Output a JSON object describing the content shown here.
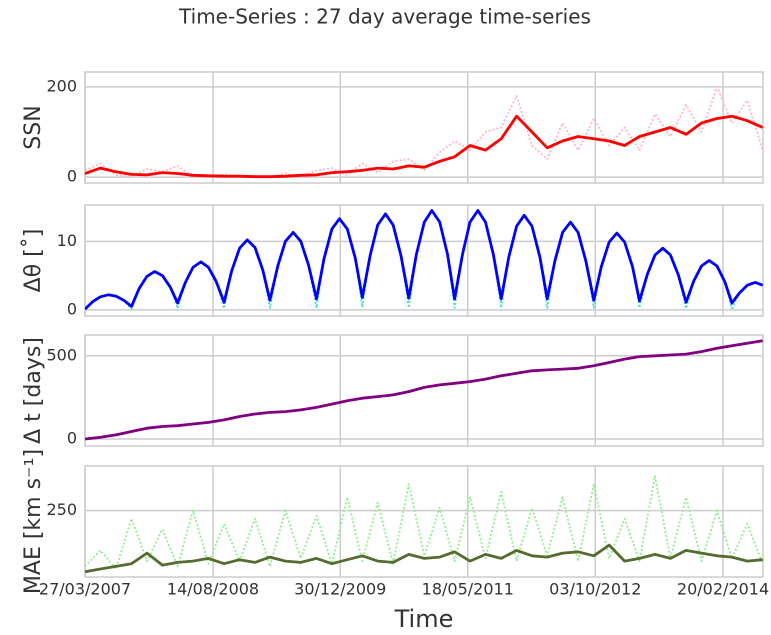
{
  "title": "Time-Series : 27 day average time-series",
  "chart_data": [
    {
      "type": "line",
      "ylabel": "SSN",
      "xlim": [
        "27/03/2007",
        "28/07/2014"
      ],
      "ylim": [
        -13,
        233
      ],
      "yticks": [
        0,
        200
      ],
      "grid": true,
      "x": [
        "27/03/2007",
        "27/05/2007",
        "27/07/2007",
        "27/09/2007",
        "27/11/2007",
        "27/01/2008",
        "27/03/2008",
        "27/05/2008",
        "27/07/2008",
        "27/09/2008",
        "27/11/2008",
        "27/01/2009",
        "27/03/2009",
        "27/05/2009",
        "27/07/2009",
        "27/09/2009",
        "27/11/2009",
        "27/01/2010",
        "27/03/2010",
        "27/05/2010",
        "27/07/2010",
        "27/09/2010",
        "27/11/2010",
        "27/01/2011",
        "27/03/2011",
        "27/05/2011",
        "27/07/2011",
        "27/09/2011",
        "27/11/2011",
        "27/01/2012",
        "27/03/2012",
        "27/05/2012",
        "27/07/2012",
        "27/09/2012",
        "27/11/2012",
        "27/01/2013",
        "27/03/2013",
        "27/05/2013",
        "27/07/2013",
        "27/09/2013",
        "27/11/2013",
        "27/01/2014",
        "27/03/2014",
        "27/05/2014",
        "27/07/2014"
      ],
      "series": [
        {
          "color": "#ffb6c1",
          "style": "dotted",
          "values": [
            15,
            30,
            5,
            2,
            18,
            12,
            25,
            1,
            0,
            6,
            2,
            3,
            0,
            8,
            1,
            15,
            20,
            5,
            30,
            10,
            35,
            40,
            15,
            55,
            80,
            60,
            100,
            110,
            180,
            70,
            40,
            120,
            60,
            130,
            70,
            110,
            60,
            140,
            90,
            160,
            100,
            200,
            120,
            170,
            60
          ]
        },
        {
          "color": "#ff0000",
          "style": "solid",
          "values": [
            8,
            20,
            12,
            6,
            5,
            10,
            8,
            4,
            3,
            2,
            2,
            1,
            1,
            2,
            4,
            5,
            10,
            12,
            15,
            20,
            18,
            25,
            22,
            35,
            45,
            70,
            60,
            85,
            135,
            100,
            65,
            80,
            90,
            85,
            80,
            70,
            90,
            100,
            110,
            95,
            120,
            130,
            135,
            125,
            110
          ]
        }
      ]
    },
    {
      "type": "line",
      "ylabel": "Δθ [˚]",
      "xlim": [
        "27/03/2007",
        "28/07/2014"
      ],
      "ylim": [
        -0.9,
        15.3
      ],
      "yticks": [
        0,
        10
      ],
      "grid": true,
      "x": [
        "27/03/2007",
        "27/04/2007",
        "27/05/2007",
        "27/06/2007",
        "27/07/2007",
        "27/08/2007",
        "27/09/2007",
        "27/10/2007",
        "27/11/2007",
        "27/12/2007",
        "27/01/2008",
        "27/02/2008",
        "27/03/2008",
        "27/04/2008",
        "27/05/2008",
        "27/06/2008",
        "27/07/2008",
        "27/08/2008",
        "27/09/2008",
        "27/10/2008",
        "27/11/2008",
        "27/12/2008",
        "27/01/2009",
        "27/02/2009",
        "27/03/2009",
        "27/04/2009",
        "27/05/2009",
        "27/06/2009",
        "27/07/2009",
        "27/08/2009",
        "27/09/2009",
        "27/10/2009",
        "27/11/2009",
        "27/12/2009",
        "27/01/2010",
        "27/02/2010",
        "27/03/2010",
        "27/04/2010",
        "27/05/2010",
        "27/06/2010",
        "27/07/2010",
        "27/08/2010",
        "27/09/2010",
        "27/10/2010",
        "27/11/2010",
        "27/12/2010",
        "27/01/2011",
        "27/02/2011",
        "27/03/2011",
        "27/04/2011",
        "27/05/2011",
        "27/06/2011",
        "27/07/2011",
        "27/08/2011",
        "27/09/2011",
        "27/10/2011",
        "27/11/2011",
        "27/12/2011",
        "27/01/2012",
        "27/02/2012",
        "27/03/2012",
        "27/04/2012",
        "27/05/2012",
        "27/06/2012",
        "27/07/2012",
        "27/08/2012",
        "27/09/2012",
        "27/10/2012",
        "27/11/2012",
        "27/12/2012",
        "27/01/2013",
        "27/02/2013",
        "27/03/2013",
        "27/04/2013",
        "27/05/2013",
        "27/06/2013",
        "27/07/2013",
        "27/08/2013",
        "27/09/2013",
        "27/10/2013",
        "27/11/2013",
        "27/12/2013",
        "27/01/2014",
        "27/02/2014",
        "27/03/2014",
        "27/04/2014",
        "27/05/2014",
        "27/06/2014",
        "27/07/2014"
      ],
      "series": [
        {
          "color": "#40e0d0",
          "style": "dotted",
          "values": [
            0.0,
            1.2,
            1.9,
            2.2,
            2.0,
            1.4,
            0.1,
            3.1,
            4.9,
            5.6,
            5.0,
            3.3,
            0.2,
            4.0,
            6.2,
            7.0,
            6.2,
            4.1,
            0.2,
            5.7,
            9.0,
            10.2,
            9.1,
            5.8,
            0.3,
            6.4,
            10.0,
            11.3,
            10.0,
            6.5,
            0.3,
            7.5,
            11.8,
            13.3,
            11.8,
            7.6,
            0.4,
            7.9,
            12.4,
            14.0,
            12.4,
            7.9,
            0.3,
            8.1,
            12.8,
            14.5,
            12.8,
            8.1,
            0.3,
            8.1,
            12.8,
            14.5,
            12.8,
            8.1,
            0.3,
            7.7,
            12.2,
            13.8,
            12.2,
            7.7,
            0.3,
            7.2,
            11.3,
            12.8,
            11.3,
            7.1,
            0.3,
            6.3,
            9.9,
            11.2,
            9.9,
            6.3,
            0.3,
            5.2,
            8.0,
            9.0,
            8.0,
            5.1,
            0.2,
            4.2,
            6.4,
            7.2,
            6.4,
            4.1,
            0.2,
            2.5,
            3.6,
            4.0,
            3.6
          ]
        },
        {
          "color": "#0000ff",
          "style": "solid",
          "values": [
            0.1,
            1.2,
            1.9,
            2.2,
            2.0,
            1.4,
            0.5,
            3.1,
            4.9,
            5.6,
            5.0,
            3.3,
            1.0,
            4.0,
            6.2,
            7.0,
            6.2,
            4.1,
            1.1,
            5.7,
            9.0,
            10.2,
            9.1,
            5.8,
            1.4,
            6.4,
            10.0,
            11.3,
            10.0,
            6.5,
            1.6,
            7.5,
            11.8,
            13.3,
            11.8,
            7.6,
            1.8,
            7.9,
            12.4,
            14.0,
            12.4,
            7.9,
            1.7,
            8.1,
            12.8,
            14.5,
            12.8,
            8.1,
            1.6,
            8.1,
            12.8,
            14.5,
            12.8,
            8.1,
            1.6,
            7.7,
            12.2,
            13.8,
            12.2,
            7.7,
            1.6,
            7.2,
            11.3,
            12.8,
            11.3,
            7.1,
            1.4,
            6.3,
            9.9,
            11.2,
            9.9,
            6.3,
            1.3,
            5.2,
            8.0,
            9.0,
            8.0,
            5.1,
            1.1,
            4.2,
            6.4,
            7.2,
            6.4,
            4.1,
            1.0,
            2.5,
            3.6,
            4.0,
            3.6
          ]
        }
      ]
    },
    {
      "type": "line",
      "ylabel": "Δ t [days]",
      "xlim": [
        "27/03/2007",
        "28/07/2014"
      ],
      "ylim": [
        -42,
        625
      ],
      "yticks": [
        0,
        500
      ],
      "grid": true,
      "x": [
        "27/03/2007",
        "27/05/2007",
        "27/07/2007",
        "27/09/2007",
        "27/11/2007",
        "27/01/2008",
        "27/03/2008",
        "27/05/2008",
        "27/07/2008",
        "27/09/2008",
        "27/11/2008",
        "27/01/2009",
        "27/03/2009",
        "27/05/2009",
        "27/07/2009",
        "27/09/2009",
        "27/11/2009",
        "27/01/2010",
        "27/03/2010",
        "27/05/2010",
        "27/07/2010",
        "27/09/2010",
        "27/11/2010",
        "27/01/2011",
        "27/03/2011",
        "27/05/2011",
        "27/07/2011",
        "27/09/2011",
        "27/11/2011",
        "27/01/2012",
        "27/03/2012",
        "27/05/2012",
        "27/07/2012",
        "27/09/2012",
        "27/11/2012",
        "27/01/2013",
        "27/03/2013",
        "27/05/2013",
        "27/07/2013",
        "27/09/2013",
        "27/11/2013",
        "27/01/2014",
        "27/03/2014",
        "27/05/2014",
        "27/07/2014"
      ],
      "series": [
        {
          "color": "#800080",
          "style": "solid",
          "values": [
            0,
            10,
            25,
            45,
            65,
            75,
            80,
            90,
            100,
            115,
            135,
            150,
            160,
            165,
            175,
            190,
            210,
            230,
            245,
            255,
            265,
            285,
            310,
            325,
            335,
            345,
            360,
            380,
            395,
            410,
            415,
            420,
            425,
            440,
            460,
            480,
            495,
            500,
            505,
            510,
            525,
            545,
            560,
            575,
            590
          ]
        }
      ]
    },
    {
      "type": "line",
      "ylabel": "MAE [km s⁻¹]",
      "xlabel": "Time",
      "xlim": [
        "27/03/2007",
        "28/07/2014"
      ],
      "ylim": [
        0,
        418
      ],
      "yticks": [
        250
      ],
      "grid": true,
      "xticks": [
        "27/03/2007",
        "14/08/2008",
        "30/12/2009",
        "18/05/2011",
        "03/10/2012",
        "20/02/2014"
      ],
      "x": [
        "27/03/2007",
        "27/05/2007",
        "27/07/2007",
        "27/09/2007",
        "27/11/2007",
        "27/01/2008",
        "27/03/2008",
        "27/05/2008",
        "27/07/2008",
        "27/09/2008",
        "27/11/2008",
        "27/01/2009",
        "27/03/2009",
        "27/05/2009",
        "27/07/2009",
        "27/09/2009",
        "27/11/2009",
        "27/01/2010",
        "27/03/2010",
        "27/05/2010",
        "27/07/2010",
        "27/09/2010",
        "27/11/2010",
        "27/01/2011",
        "27/03/2011",
        "27/05/2011",
        "27/07/2011",
        "27/09/2011",
        "27/11/2011",
        "27/01/2012",
        "27/03/2012",
        "27/05/2012",
        "27/07/2012",
        "27/09/2012",
        "27/11/2012",
        "27/01/2013",
        "27/03/2013",
        "27/05/2013",
        "27/07/2013",
        "27/09/2013",
        "27/11/2013",
        "27/01/2014",
        "27/03/2014",
        "27/05/2014",
        "27/07/2014"
      ],
      "series": [
        {
          "color": "#90ee90",
          "style": "dotted",
          "values": [
            40,
            100,
            30,
            220,
            60,
            180,
            40,
            250,
            50,
            200,
            60,
            220,
            40,
            250,
            70,
            230,
            50,
            300,
            60,
            280,
            50,
            350,
            80,
            260,
            60,
            300,
            70,
            320,
            60,
            260,
            80,
            300,
            60,
            350,
            70,
            220,
            60,
            380,
            70,
            300,
            60,
            250,
            70,
            200,
            50
          ]
        },
        {
          "color": "#556b2f",
          "style": "solid",
          "values": [
            20,
            30,
            40,
            50,
            90,
            45,
            55,
            60,
            70,
            50,
            65,
            55,
            75,
            60,
            55,
            70,
            50,
            65,
            80,
            60,
            55,
            85,
            70,
            75,
            95,
            60,
            85,
            70,
            100,
            80,
            75,
            90,
            95,
            80,
            120,
            60,
            70,
            85,
            70,
            100,
            90,
            80,
            75,
            60,
            65
          ]
        }
      ]
    }
  ]
}
